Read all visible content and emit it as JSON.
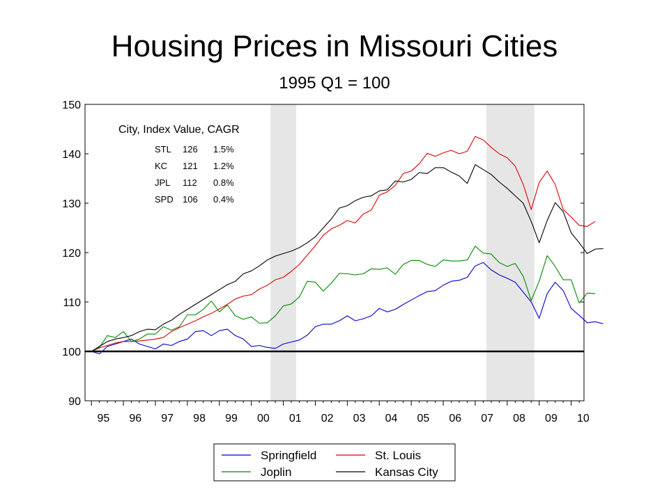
{
  "chart_data": {
    "type": "line",
    "title": "Housing Prices in Missouri Cities",
    "subtitle": "1995 Q1 = 100",
    "xlabel": "",
    "ylabel": "",
    "x_start": 1995.0,
    "x_step": 0.25,
    "xlim": [
      1994.8,
      2010.4
    ],
    "ylim": [
      90,
      150
    ],
    "yticks": [
      90,
      100,
      110,
      120,
      130,
      140,
      150
    ],
    "year_labels": [
      "95",
      "96",
      "97",
      "98",
      "99",
      "00",
      "01",
      "02",
      "03",
      "04",
      "05",
      "06",
      "07",
      "08",
      "09",
      "10"
    ],
    "reference_line": 100,
    "shaded_periods": [
      {
        "start": 2000.6,
        "end": 2001.4
      },
      {
        "start": 2007.35,
        "end": 2008.85
      }
    ],
    "annotation": {
      "title": "City, Index Value, CAGR",
      "rows": [
        {
          "city": "STL",
          "value": "126",
          "cagr": "1.5%"
        },
        {
          "city": "KC",
          "value": "121",
          "cagr": "1.2%"
        },
        {
          "city": "JPL",
          "value": "112",
          "cagr": "0.8%"
        },
        {
          "city": "SPD",
          "value": "106",
          "cagr": "0.4%"
        }
      ]
    },
    "legend_position": "bottom-center",
    "series": [
      {
        "name": "Springfield",
        "color": "#0000cc",
        "values": [
          100,
          99.5,
          101,
          101.5,
          102,
          102.5,
          101.5,
          101,
          100.5,
          101.5,
          101.2,
          102,
          102.5,
          104,
          104.2,
          103.2,
          104.2,
          104.5,
          103.2,
          102.5,
          101,
          101.2,
          100.8,
          100.6,
          101.5,
          101.9,
          102.3,
          103.3,
          105,
          105.5,
          105.5,
          106.2,
          107.2,
          106.2,
          106.6,
          107.2,
          108.7,
          108,
          108.5,
          109.5,
          110.4,
          111.3,
          112.1,
          112.3,
          113.4,
          114.2,
          114.4,
          115,
          117.3,
          118,
          116.5,
          115.5,
          114.8,
          114,
          112,
          110,
          106.7,
          111.7,
          114,
          112.3,
          108.7,
          107.3,
          105.8,
          106,
          105.6
        ]
      },
      {
        "name": "St. Louis",
        "color": "#dd0000",
        "values": [
          100,
          100.7,
          101.2,
          101.7,
          102,
          102,
          102.1,
          102.3,
          102.5,
          102.8,
          104,
          104.8,
          105.5,
          106.2,
          107,
          107.7,
          108.6,
          109.5,
          110.6,
          111.2,
          111.5,
          112.6,
          113.4,
          114.5,
          115,
          116.2,
          117.6,
          119.5,
          121.4,
          123.5,
          124.8,
          125.5,
          126.5,
          126,
          127.8,
          128.6,
          131.6,
          132.3,
          133.6,
          136,
          136.5,
          138,
          140.1,
          139.5,
          140.2,
          140.7,
          140,
          140.5,
          143.5,
          142.8,
          141.3,
          140,
          139.2,
          137.5,
          133.8,
          128.7,
          134.2,
          136.5,
          133.8,
          128.7,
          127.2,
          125.5,
          125.3,
          126.3
        ]
      },
      {
        "name": "Joplin",
        "color": "#008800",
        "values": [
          100,
          100.8,
          103.2,
          102.8,
          104,
          102,
          102.5,
          103.5,
          103.5,
          105,
          104.3,
          105,
          107.4,
          107.4,
          108.5,
          110.2,
          108,
          109.4,
          107.2,
          106.5,
          107,
          105.7,
          105.8,
          107.2,
          109.2,
          109.6,
          111,
          114.2,
          114,
          112.2,
          113.8,
          115.8,
          115.7,
          115.5,
          115.7,
          116.7,
          116.6,
          116.9,
          115.6,
          117.6,
          118.4,
          118.4,
          117.6,
          117.2,
          118.5,
          118.3,
          118.3,
          118.5,
          121.3,
          119.9,
          119.7,
          118,
          117.2,
          117.8,
          115.2,
          110.3,
          114.2,
          119.4,
          117.2,
          114.5,
          114.5,
          109.8,
          111.8,
          111.7
        ]
      },
      {
        "name": "Kansas City",
        "color": "#000000",
        "values": [
          100,
          101,
          102,
          102.5,
          102.8,
          103.2,
          104,
          104.5,
          104.4,
          105.5,
          106.3,
          107.5,
          108.5,
          109.5,
          110.5,
          111.5,
          112.5,
          113.5,
          114.2,
          115.7,
          116.3,
          117.3,
          118.5,
          119.3,
          119.8,
          120.3,
          121,
          122,
          123.2,
          125,
          126.8,
          129,
          129.5,
          130.5,
          131.2,
          131.5,
          132.5,
          132.7,
          134.5,
          134.3,
          134.8,
          136.2,
          136,
          137.2,
          137.2,
          136.3,
          135.5,
          134,
          137.8,
          136.8,
          135.8,
          134.3,
          133,
          131.5,
          130,
          126.3,
          122,
          126.5,
          130.1,
          128.3,
          124,
          122,
          119.8,
          120.7,
          120.8
        ]
      }
    ]
  }
}
